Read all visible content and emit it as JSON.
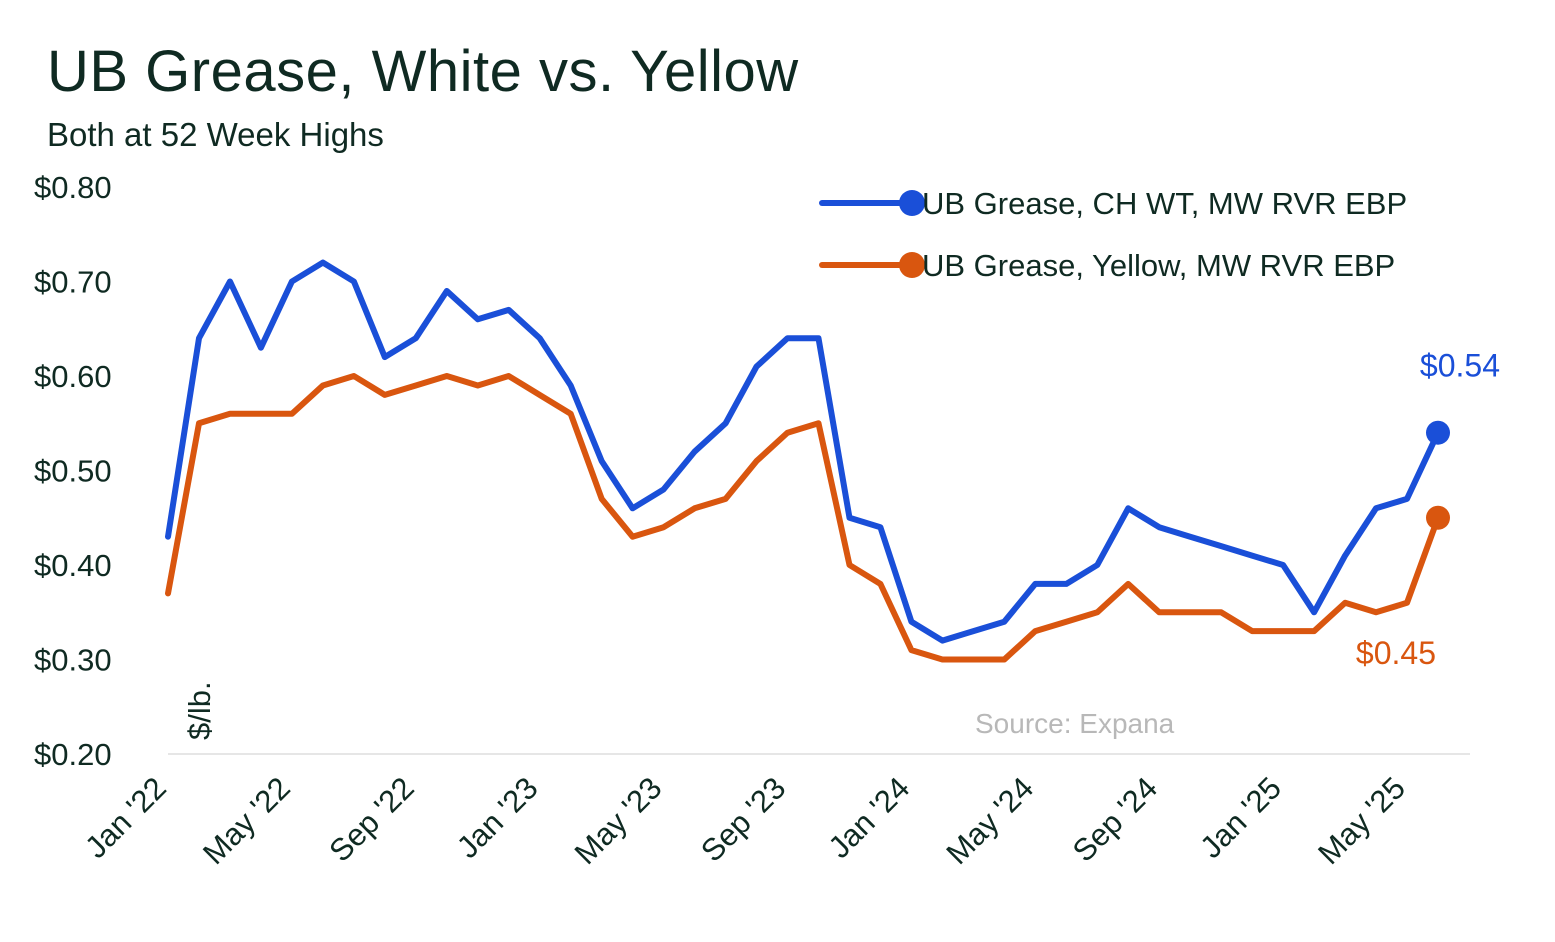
{
  "title": "UB Grease, White vs. Yellow",
  "subtitle": "Both at 52 Week Highs",
  "source": "Source: Expana",
  "colors": {
    "white": "#1a4fd8",
    "yellow": "#d9560f",
    "text": "#0f2a22",
    "source": "#b8b8b8"
  },
  "chart_data": {
    "type": "line",
    "title": "UB Grease, White vs. Yellow",
    "subtitle": "Both at 52 Week Highs",
    "ylabel": "$/lb.",
    "xlabel": "",
    "ylim": [
      0.2,
      0.8
    ],
    "grid": false,
    "legend_position": "top-right",
    "y_ticks": [
      "$0.80",
      "$0.70",
      "$0.60",
      "$0.50",
      "$0.40",
      "$0.30",
      "$0.20"
    ],
    "y_tick_values": [
      0.8,
      0.7,
      0.6,
      0.5,
      0.4,
      0.3,
      0.2
    ],
    "x_ticks": [
      "Jan '22",
      "May '22",
      "Sep '22",
      "Jan '23",
      "May '23",
      "Sep '23",
      "Jan '24",
      "May '24",
      "Sep '24",
      "Jan '25",
      "May '25"
    ],
    "x": [
      "2022-01",
      "2022-02",
      "2022-03",
      "2022-04",
      "2022-05",
      "2022-06",
      "2022-07",
      "2022-08",
      "2022-09",
      "2022-10",
      "2022-11",
      "2022-12",
      "2023-01",
      "2023-02",
      "2023-03",
      "2023-04",
      "2023-05",
      "2023-06",
      "2023-07",
      "2023-08",
      "2023-09",
      "2023-10",
      "2023-11",
      "2023-12",
      "2024-01",
      "2024-02",
      "2024-03",
      "2024-04",
      "2024-05",
      "2024-06",
      "2024-07",
      "2024-08",
      "2024-09",
      "2024-10",
      "2024-11",
      "2024-12",
      "2025-01",
      "2025-02",
      "2025-03",
      "2025-04",
      "2025-05",
      "2025-06"
    ],
    "series": [
      {
        "name": "UB Grease, CH WT, MW RVR EBP",
        "color": "#1a4fd8",
        "end_label": "$0.54",
        "values": [
          0.43,
          0.64,
          0.7,
          0.63,
          0.7,
          0.72,
          0.7,
          0.62,
          0.64,
          0.69,
          0.66,
          0.67,
          0.64,
          0.59,
          0.51,
          0.46,
          0.48,
          0.52,
          0.55,
          0.61,
          0.64,
          0.64,
          0.45,
          0.44,
          0.34,
          0.32,
          0.33,
          0.34,
          0.38,
          0.38,
          0.4,
          0.46,
          0.44,
          0.43,
          0.42,
          0.41,
          0.4,
          0.35,
          0.41,
          0.46,
          0.47,
          0.54
        ]
      },
      {
        "name": "UB Grease, Yellow, MW RVR EBP",
        "color": "#d9560f",
        "end_label": "$0.45",
        "values": [
          0.37,
          0.55,
          0.56,
          0.56,
          0.56,
          0.59,
          0.6,
          0.58,
          0.59,
          0.6,
          0.59,
          0.6,
          0.58,
          0.56,
          0.47,
          0.43,
          0.44,
          0.46,
          0.47,
          0.51,
          0.54,
          0.55,
          0.4,
          0.38,
          0.31,
          0.3,
          0.3,
          0.3,
          0.33,
          0.34,
          0.35,
          0.38,
          0.35,
          0.35,
          0.35,
          0.33,
          0.33,
          0.33,
          0.36,
          0.35,
          0.36,
          0.45
        ]
      }
    ]
  }
}
